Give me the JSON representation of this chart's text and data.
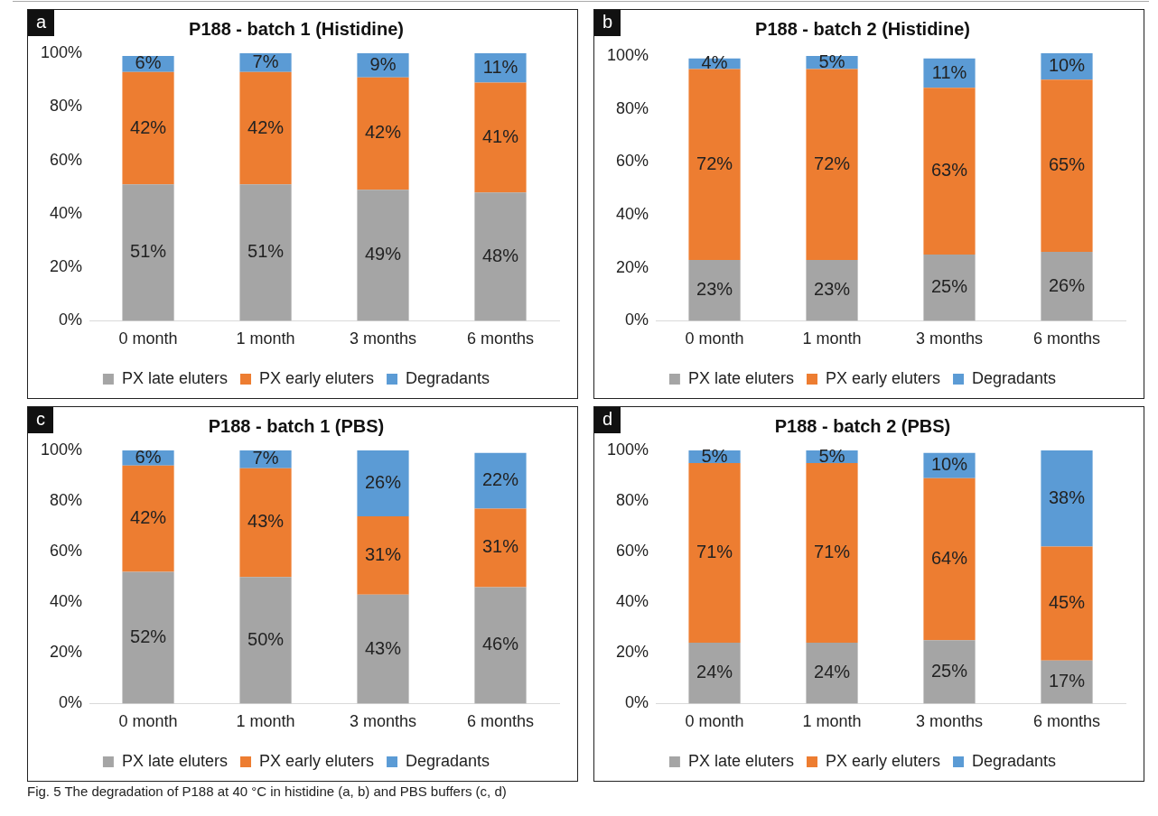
{
  "chart_data": [
    {
      "type": "bar",
      "title": "P188 - batch 1 (Histidine)",
      "categories": [
        "0 month",
        "1 month",
        "3 months",
        "6 months"
      ],
      "stacked": true,
      "legend": "bottom",
      "grid": false,
      "ylim": [
        0,
        100
      ],
      "yticks": [
        {
          "value": 0,
          "label": "0%"
        },
        {
          "value": 20,
          "label": "20%"
        },
        {
          "value": 40,
          "label": "40%"
        },
        {
          "value": 60,
          "label": "60%"
        },
        {
          "value": 80,
          "label": "80%"
        },
        {
          "value": 100,
          "label": "100%"
        }
      ],
      "annotations": [
        "a"
      ],
      "series": [
        {
          "name": "PX late eluters",
          "color": "#a5a5a5",
          "values": [
            51,
            51,
            49,
            48
          ],
          "value_labels": [
            "51%",
            "51%",
            "49%",
            "48%"
          ]
        },
        {
          "name": "PX early eluters",
          "color": "#ed7d31",
          "values": [
            42,
            42,
            42,
            41
          ],
          "value_labels": [
            "42%",
            "42%",
            "42%",
            "41%"
          ]
        },
        {
          "name": "Degradants",
          "color": "#5b9bd5",
          "values": [
            6,
            7,
            9,
            11
          ],
          "value_labels": [
            "6%",
            "7%",
            "9%",
            "11%"
          ]
        }
      ]
    },
    {
      "type": "bar",
      "title": "P188 - batch 2 (Histidine)",
      "categories": [
        "0 month",
        "1 month",
        "3 months",
        "6 months"
      ],
      "stacked": true,
      "legend": "bottom",
      "grid": false,
      "ylim": [
        0,
        101
      ],
      "yticks": [
        {
          "value": 0,
          "label": "0%"
        },
        {
          "value": 20,
          "label": "20%"
        },
        {
          "value": 40,
          "label": "40%"
        },
        {
          "value": 60,
          "label": "60%"
        },
        {
          "value": 80,
          "label": "80%"
        },
        {
          "value": 100,
          "label": "100%"
        }
      ],
      "annotations": [
        "b"
      ],
      "series": [
        {
          "name": "PX late eluters",
          "color": "#a5a5a5",
          "values": [
            23,
            23,
            25,
            26
          ],
          "value_labels": [
            "23%",
            "23%",
            "25%",
            "26%"
          ]
        },
        {
          "name": "PX early eluters",
          "color": "#ed7d31",
          "values": [
            72,
            72,
            63,
            65
          ],
          "value_labels": [
            "72%",
            "72%",
            "63%",
            "65%"
          ]
        },
        {
          "name": "Degradants",
          "color": "#5b9bd5",
          "values": [
            4,
            5,
            11,
            10
          ],
          "value_labels": [
            "4%",
            "5%",
            "11%",
            "10%"
          ]
        }
      ]
    },
    {
      "type": "bar",
      "title": "P188 - batch 1 (PBS)",
      "categories": [
        "0 month",
        "1 month",
        "3 months",
        "6 months"
      ],
      "stacked": true,
      "legend": "bottom",
      "grid": false,
      "ylim": [
        0,
        100
      ],
      "yticks": [
        {
          "value": 0,
          "label": "0%"
        },
        {
          "value": 20,
          "label": "20%"
        },
        {
          "value": 40,
          "label": "40%"
        },
        {
          "value": 60,
          "label": "60%"
        },
        {
          "value": 80,
          "label": "80%"
        },
        {
          "value": 100,
          "label": "100%"
        }
      ],
      "annotations": [
        "c"
      ],
      "series": [
        {
          "name": "PX late eluters",
          "color": "#a5a5a5",
          "values": [
            52,
            50,
            43,
            46
          ],
          "value_labels": [
            "52%",
            "50%",
            "43%",
            "46%"
          ]
        },
        {
          "name": "PX early eluters",
          "color": "#ed7d31",
          "values": [
            42,
            43,
            31,
            31
          ],
          "value_labels": [
            "42%",
            "43%",
            "31%",
            "31%"
          ]
        },
        {
          "name": "Degradants",
          "color": "#5b9bd5",
          "values": [
            6,
            7,
            26,
            22
          ],
          "value_labels": [
            "6%",
            "7%",
            "26%",
            "22%"
          ]
        }
      ]
    },
    {
      "type": "bar",
      "title": "P188 - batch 2 (PBS)",
      "categories": [
        "0 month",
        "1 month",
        "3 months",
        "6 months"
      ],
      "stacked": true,
      "legend": "bottom",
      "grid": false,
      "ylim": [
        0,
        100
      ],
      "yticks": [
        {
          "value": 0,
          "label": "0%"
        },
        {
          "value": 20,
          "label": "20%"
        },
        {
          "value": 40,
          "label": "40%"
        },
        {
          "value": 60,
          "label": "60%"
        },
        {
          "value": 80,
          "label": "80%"
        },
        {
          "value": 100,
          "label": "100%"
        }
      ],
      "annotations": [
        "d",
        "Fig. 5 The degradation of P188 at 40 °C in histidine (a, b) and PBS buffers (c, d)"
      ],
      "series": [
        {
          "name": "PX late eluters",
          "color": "#a5a5a5",
          "values": [
            24,
            24,
            25,
            17
          ],
          "value_labels": [
            "24%",
            "24%",
            "25%",
            "17%"
          ]
        },
        {
          "name": "PX early eluters",
          "color": "#ed7d31",
          "values": [
            71,
            71,
            64,
            45
          ],
          "value_labels": [
            "71%",
            "71%",
            "64%",
            "45%"
          ]
        },
        {
          "name": "Degradants",
          "color": "#5b9bd5",
          "values": [
            5,
            5,
            10,
            38
          ],
          "value_labels": [
            "5%",
            "5%",
            "10%",
            "38%"
          ]
        }
      ]
    }
  ]
}
